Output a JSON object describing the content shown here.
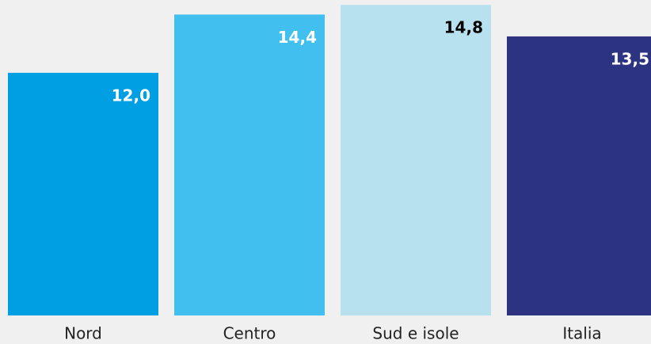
{
  "chart_data": {
    "type": "bar",
    "categories": [
      "Nord",
      "Centro",
      "Sud e isole",
      "Italia"
    ],
    "values": [
      12.0,
      14.4,
      14.8,
      13.5
    ],
    "value_labels": [
      "12,0",
      "14,4",
      "14,8",
      "13,5"
    ],
    "colors": [
      "#009fe3",
      "#41bfee",
      "#b8e1ef",
      "#2c3481"
    ],
    "label_colors": [
      "#ffffff",
      "#ffffff",
      "#000000",
      "#ffffff"
    ],
    "ylim": [
      2,
      15
    ]
  }
}
